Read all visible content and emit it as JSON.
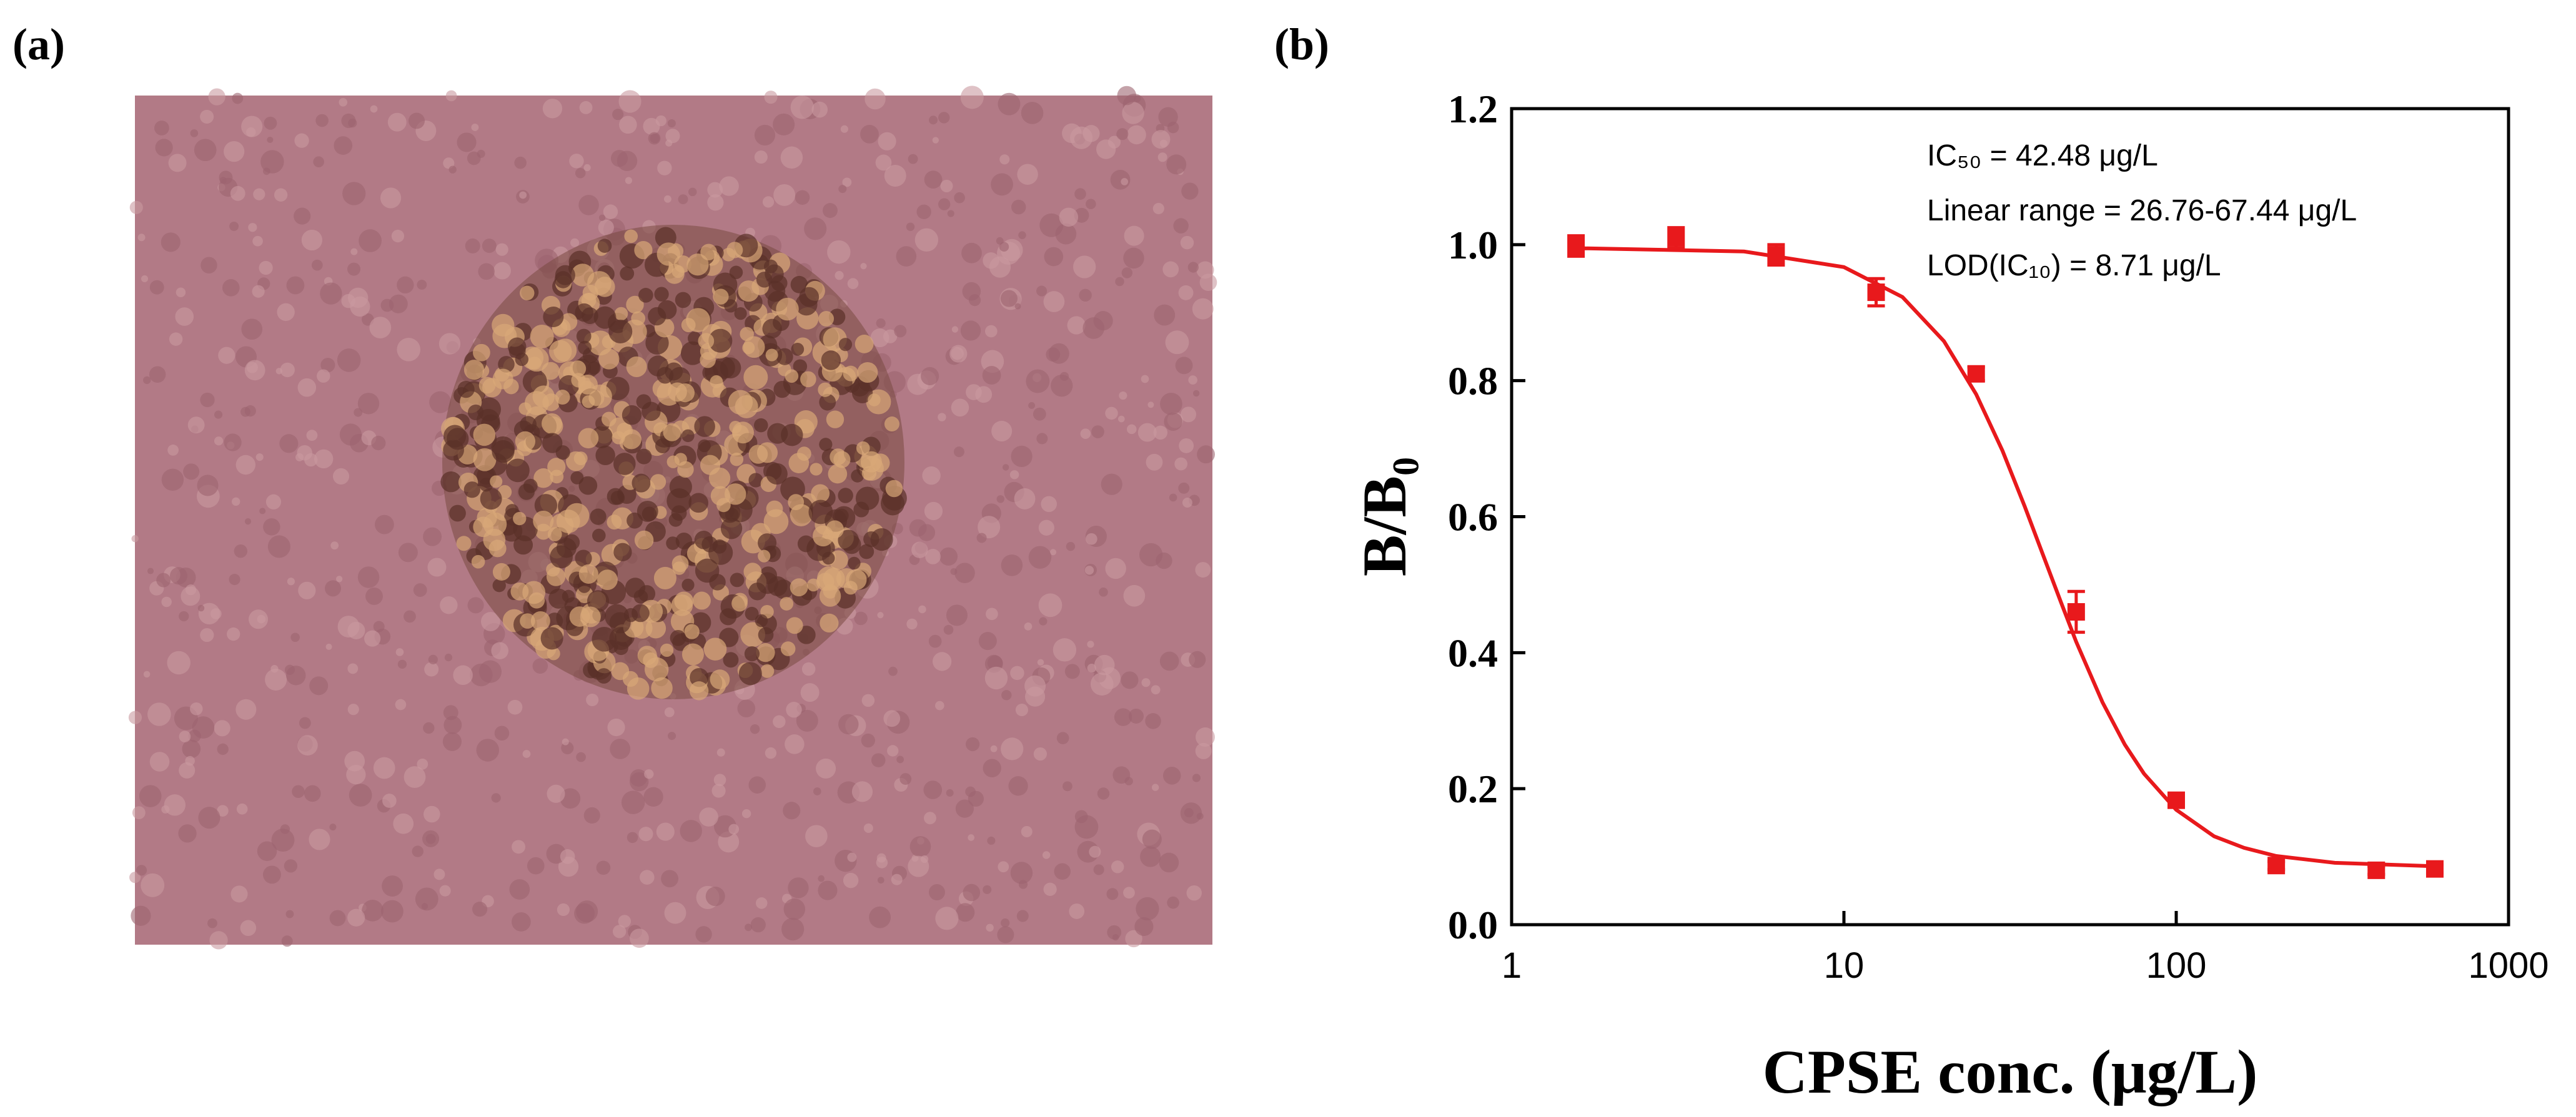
{
  "panel_a": {
    "label": "(a)"
  },
  "chart_data": {
    "type": "scatter",
    "panel_label": "(b)",
    "x_label": "CPSE conc. (μg/L)",
    "y_label": "B/B₀",
    "x": [
      1.5625,
      3.125,
      6.25,
      12.5,
      25,
      50,
      100,
      200,
      400,
      600
    ],
    "values": [
      0.998,
      1.01,
      0.985,
      0.93,
      0.81,
      0.46,
      0.183,
      0.087,
      0.08,
      0.082
    ],
    "errors": [
      0.015,
      0.015,
      0.015,
      0.02,
      0.01,
      0.03,
      0.006,
      0.006,
      0.006,
      0.006
    ],
    "color": "#e8191c",
    "fit": {
      "x": [
        1.5,
        5,
        10,
        15,
        20,
        25,
        30,
        35,
        40,
        45,
        50,
        60,
        70,
        80,
        100,
        130,
        160,
        200,
        300,
        600
      ],
      "values": [
        0.995,
        0.99,
        0.967,
        0.923,
        0.858,
        0.78,
        0.697,
        0.615,
        0.54,
        0.474,
        0.416,
        0.327,
        0.265,
        0.222,
        0.169,
        0.13,
        0.113,
        0.101,
        0.091,
        0.086
      ]
    },
    "xscale": "log",
    "xlim": [
      1,
      1000
    ],
    "xticks": [
      1,
      10,
      100,
      1000
    ],
    "ylim": [
      0,
      1.2
    ],
    "yticks": [
      {
        "value": 0,
        "label": "0.0"
      },
      0.2,
      0.4,
      0.6,
      0.8,
      {
        "value": 1,
        "label": "1.0"
      },
      1.2
    ],
    "annotations": [
      "IC₅₀ = 42.48 μg/L",
      "Linear range = 26.76-67.44 μg/L",
      "LOD(IC₁₀) = 8.71 μg/L"
    ]
  }
}
